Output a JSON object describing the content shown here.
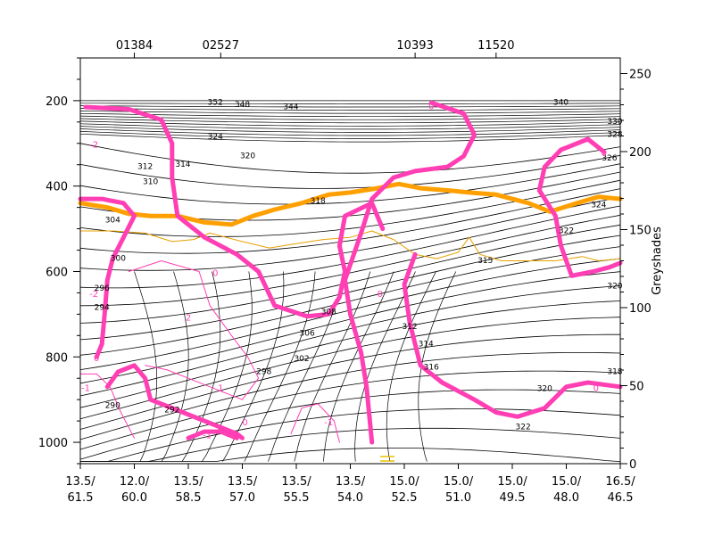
{
  "chart_data": {
    "type": "line",
    "right_axis_title": "Greyshades",
    "left_axis_ticks": [
      200,
      400,
      600,
      800,
      1000
    ],
    "left_axis_range": [
      1050,
      100
    ],
    "right_axis_ticks": [
      0,
      50,
      100,
      150,
      200,
      250
    ],
    "right_axis_range": [
      0,
      260
    ],
    "station_labels": [
      {
        "label": "01384",
        "at": 1
      },
      {
        "label": "02527",
        "at": 2.6
      },
      {
        "label": "10393",
        "at": 6.2
      },
      {
        "label": "11520",
        "at": 7.7
      }
    ],
    "x_ticks": [
      {
        "top": "13.5/",
        "bottom": "61.5"
      },
      {
        "top": "12.0/",
        "bottom": "60.0"
      },
      {
        "top": "13.5/",
        "bottom": "58.5"
      },
      {
        "top": "13.5/",
        "bottom": "57.0"
      },
      {
        "top": "13.5/",
        "bottom": "55.5"
      },
      {
        "top": "13.5/",
        "bottom": "54.0"
      },
      {
        "top": "15.0/",
        "bottom": "52.5"
      },
      {
        "top": "15.0/",
        "bottom": "51.0"
      },
      {
        "top": "15.0/",
        "bottom": "49.5"
      },
      {
        "top": "15.0/",
        "bottom": "48.0"
      },
      {
        "top": "16.5/",
        "bottom": "46.5"
      }
    ],
    "series": [
      {
        "kind": "orange-thick",
        "color": "#ffa000",
        "points": [
          [
            0,
            440
          ],
          [
            0.5,
            450
          ],
          [
            0.9,
            465
          ],
          [
            1.3,
            470
          ],
          [
            1.8,
            470
          ],
          [
            2.3,
            485
          ],
          [
            2.8,
            490
          ],
          [
            3.2,
            470
          ],
          [
            3.6,
            455
          ],
          [
            4.1,
            440
          ],
          [
            4.6,
            420
          ],
          [
            5.0,
            415
          ],
          [
            5.5,
            405
          ],
          [
            5.9,
            395
          ],
          [
            6.3,
            405
          ],
          [
            6.8,
            410
          ],
          [
            7.2,
            415
          ],
          [
            7.7,
            420
          ],
          [
            8.3,
            440
          ],
          [
            8.7,
            460
          ],
          [
            9.2,
            440
          ],
          [
            9.6,
            425
          ],
          [
            10,
            430
          ]
        ]
      },
      {
        "kind": "orange-thin",
        "color": "#e8a000",
        "points": [
          [
            0,
            505
          ],
          [
            0.6,
            505
          ],
          [
            1.2,
            510
          ],
          [
            1.7,
            530
          ],
          [
            2.1,
            525
          ],
          [
            2.4,
            510
          ],
          [
            2.7,
            520
          ],
          [
            3.0,
            530
          ],
          [
            3.5,
            545
          ],
          [
            4.0,
            535
          ],
          [
            4.5,
            525
          ],
          [
            5.0,
            520
          ],
          [
            5.4,
            505
          ],
          [
            5.8,
            525
          ],
          [
            6.2,
            560
          ],
          [
            6.6,
            570
          ],
          [
            7.0,
            555
          ],
          [
            7.2,
            520
          ],
          [
            7.4,
            560
          ],
          [
            7.8,
            575
          ],
          [
            8.3,
            575
          ],
          [
            8.8,
            575
          ],
          [
            9.3,
            565
          ],
          [
            9.6,
            575
          ],
          [
            10,
            570
          ]
        ]
      },
      {
        "kind": "magenta-thick",
        "color": "#ff3fb3",
        "points": [
          [
            0.1,
            215
          ],
          [
            0.9,
            220
          ],
          [
            1.5,
            245
          ],
          [
            1.7,
            300
          ],
          [
            1.7,
            380
          ],
          [
            1.8,
            470
          ],
          [
            2.3,
            520
          ],
          [
            2.9,
            560
          ],
          [
            3.3,
            600
          ],
          [
            3.6,
            680
          ],
          [
            4.2,
            705
          ],
          [
            4.6,
            700
          ],
          [
            4.8,
            660
          ],
          [
            4.9,
            600
          ],
          [
            4.8,
            540
          ],
          [
            4.9,
            470
          ],
          [
            5.4,
            440
          ],
          [
            5.6,
            500
          ]
        ]
      },
      {
        "kind": "magenta-thick",
        "color": "#ff3fb3",
        "points": [
          [
            6.5,
            205
          ],
          [
            7.1,
            230
          ],
          [
            7.3,
            280
          ],
          [
            7.1,
            330
          ],
          [
            6.8,
            355
          ],
          [
            6.2,
            365
          ],
          [
            5.8,
            380
          ],
          [
            5.4,
            430
          ],
          [
            5.2,
            510
          ],
          [
            4.9,
            620
          ],
          [
            5.0,
            700
          ],
          [
            5.2,
            790
          ],
          [
            5.3,
            870
          ],
          [
            5.4,
            1000
          ]
        ]
      },
      {
        "kind": "magenta-thick",
        "color": "#ff3fb3",
        "points": [
          [
            6.2,
            560
          ],
          [
            6.0,
            630
          ],
          [
            6.1,
            720
          ],
          [
            6.3,
            820
          ],
          [
            6.7,
            860
          ],
          [
            7.3,
            900
          ],
          [
            7.7,
            930
          ],
          [
            8.1,
            940
          ],
          [
            8.6,
            920
          ],
          [
            9.0,
            870
          ],
          [
            9.4,
            860
          ],
          [
            10,
            870
          ]
        ]
      },
      {
        "kind": "magenta-thick",
        "color": "#ff3fb3",
        "points": [
          [
            9.7,
            320
          ],
          [
            9.4,
            290
          ],
          [
            8.9,
            315
          ],
          [
            8.6,
            355
          ],
          [
            8.5,
            410
          ],
          [
            8.8,
            470
          ],
          [
            8.9,
            540
          ],
          [
            9.1,
            610
          ],
          [
            9.5,
            600
          ],
          [
            9.8,
            590
          ],
          [
            10,
            580
          ]
        ]
      },
      {
        "kind": "magenta-thick",
        "color": "#ff3fb3",
        "points": [
          [
            0.0,
            430
          ],
          [
            0.4,
            430
          ],
          [
            0.8,
            440
          ],
          [
            1.0,
            470
          ],
          [
            0.8,
            520
          ],
          [
            0.6,
            570
          ],
          [
            0.5,
            620
          ],
          [
            0.45,
            700
          ],
          [
            0.4,
            770
          ],
          [
            0.3,
            800
          ]
        ]
      },
      {
        "kind": "magenta-thick",
        "color": "#ff3fb3",
        "points": [
          [
            0.5,
            870
          ],
          [
            0.7,
            835
          ],
          [
            1.0,
            820
          ],
          [
            1.2,
            850
          ],
          [
            1.3,
            900
          ],
          [
            1.7,
            920
          ],
          [
            2.3,
            950
          ],
          [
            2.9,
            980
          ],
          [
            3.0,
            990
          ]
        ]
      },
      {
        "kind": "magenta-thick",
        "color": "#ff3fb3",
        "points": [
          [
            2.0,
            990
          ],
          [
            2.3,
            975
          ],
          [
            2.6,
            975
          ],
          [
            2.9,
            990
          ]
        ]
      },
      {
        "kind": "magenta-thin",
        "color": "#ff3fb3",
        "points": [
          [
            0.9,
            600
          ],
          [
            1.5,
            575
          ],
          [
            2.2,
            600
          ],
          [
            2.4,
            680
          ],
          [
            2.8,
            750
          ],
          [
            3.1,
            800
          ],
          [
            3.3,
            850
          ],
          [
            3.0,
            900
          ],
          [
            2.4,
            870
          ],
          [
            2.0,
            850
          ],
          [
            1.6,
            830
          ],
          [
            1.2,
            820
          ]
        ]
      },
      {
        "kind": "magenta-thin",
        "color": "#ff3fb3",
        "points": [
          [
            0.0,
            840
          ],
          [
            0.3,
            840
          ],
          [
            0.55,
            870
          ],
          [
            0.75,
            930
          ],
          [
            1.0,
            990
          ]
        ]
      },
      {
        "kind": "magenta-thin",
        "color": "#ff3fb3",
        "points": [
          [
            3.9,
            980
          ],
          [
            4.1,
            920
          ],
          [
            4.4,
            910
          ],
          [
            4.7,
            950
          ],
          [
            4.8,
            1000
          ]
        ]
      }
    ],
    "isoline_labels": [
      {
        "text": "312",
        "x": 1.2,
        "y": 360
      },
      {
        "text": "314",
        "x": 1.9,
        "y": 355
      },
      {
        "text": "310",
        "x": 1.3,
        "y": 395
      },
      {
        "text": "304",
        "x": 0.6,
        "y": 485
      },
      {
        "text": "300",
        "x": 0.7,
        "y": 575
      },
      {
        "text": "296",
        "x": 0.4,
        "y": 645
      },
      {
        "text": "294",
        "x": 0.4,
        "y": 690
      },
      {
        "text": "290",
        "x": 0.6,
        "y": 920
      },
      {
        "text": "292",
        "x": 1.7,
        "y": 930
      },
      {
        "text": "298",
        "x": 3.4,
        "y": 840
      },
      {
        "text": "302",
        "x": 4.1,
        "y": 810
      },
      {
        "text": "306",
        "x": 4.2,
        "y": 750
      },
      {
        "text": "308",
        "x": 4.6,
        "y": 700
      },
      {
        "text": "312",
        "x": 6.1,
        "y": 735
      },
      {
        "text": "314",
        "x": 6.4,
        "y": 775
      },
      {
        "text": "316",
        "x": 6.5,
        "y": 830
      },
      {
        "text": "315",
        "x": 7.5,
        "y": 580
      },
      {
        "text": "318",
        "x": 4.4,
        "y": 440
      },
      {
        "text": "320",
        "x": 3.1,
        "y": 335
      },
      {
        "text": "324",
        "x": 2.5,
        "y": 290
      },
      {
        "text": "322",
        "x": 9.0,
        "y": 510
      },
      {
        "text": "320",
        "x": 8.6,
        "y": 880
      },
      {
        "text": "322",
        "x": 8.2,
        "y": 970
      },
      {
        "text": "318",
        "x": 9.9,
        "y": 840
      },
      {
        "text": "320",
        "x": 9.9,
        "y": 640
      },
      {
        "text": "324",
        "x": 9.6,
        "y": 450
      },
      {
        "text": "326",
        "x": 9.8,
        "y": 340
      },
      {
        "text": "328",
        "x": 9.9,
        "y": 285
      },
      {
        "text": "330",
        "x": 9.9,
        "y": 255
      },
      {
        "text": "340",
        "x": 8.9,
        "y": 210
      },
      {
        "text": "344",
        "x": 3.9,
        "y": 220
      },
      {
        "text": "348",
        "x": 3.0,
        "y": 215
      },
      {
        "text": "352",
        "x": 2.5,
        "y": 210
      }
    ],
    "pink_labels": [
      {
        "text": "0",
        "x": 2.5,
        "y": 610
      },
      {
        "text": "0",
        "x": 5.55,
        "y": 660
      },
      {
        "text": "0",
        "x": 6.5,
        "y": 220
      },
      {
        "text": "0",
        "x": 9.7,
        "y": 330
      },
      {
        "text": "0",
        "x": 9.55,
        "y": 880
      },
      {
        "text": "0",
        "x": 0.3,
        "y": 810
      },
      {
        "text": "0",
        "x": 3.05,
        "y": 960
      },
      {
        "text": "-2",
        "x": 0.25,
        "y": 660
      },
      {
        "text": "-2",
        "x": 0.25,
        "y": 310
      },
      {
        "text": "2",
        "x": 2.0,
        "y": 715
      },
      {
        "text": "1",
        "x": 2.6,
        "y": 880
      },
      {
        "text": "-1",
        "x": 2.35,
        "y": 990
      },
      {
        "text": "-1",
        "x": 0.1,
        "y": 880
      },
      {
        "text": "-1",
        "x": 4.6,
        "y": 960
      }
    ],
    "legend_marker_color": "#e8c000"
  }
}
